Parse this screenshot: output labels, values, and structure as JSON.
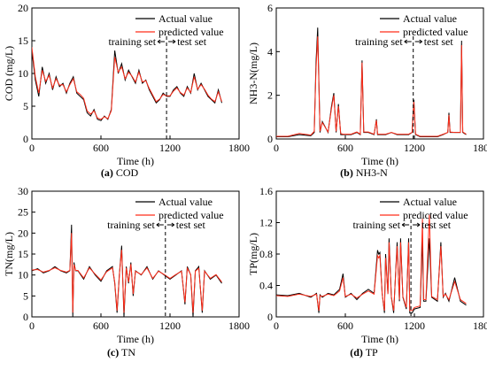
{
  "chart_data": [
    {
      "type": "line",
      "panel": "a",
      "caption_letter": "(a)",
      "caption_text": " COD",
      "xlabel": "Time (h)",
      "ylabel": "COD (mg/L)",
      "xlim": [
        0,
        1800
      ],
      "ylim": [
        0,
        20
      ],
      "xticks": [
        0,
        600,
        1200,
        1800
      ],
      "yticks": [
        0,
        5,
        10,
        15,
        20
      ],
      "legend_position": "top-right",
      "split_x": 1170,
      "annotation": {
        "left": "training set",
        "right": "test set"
      },
      "x": [
        0,
        30,
        60,
        90,
        120,
        150,
        180,
        210,
        240,
        270,
        300,
        330,
        360,
        390,
        420,
        450,
        480,
        510,
        540,
        570,
        600,
        630,
        660,
        690,
        720,
        750,
        780,
        810,
        840,
        870,
        900,
        930,
        960,
        990,
        1020,
        1050,
        1080,
        1110,
        1140,
        1170,
        1200,
        1230,
        1260,
        1290,
        1320,
        1350,
        1380,
        1410,
        1440,
        1470,
        1500,
        1530,
        1560,
        1590,
        1620,
        1650
      ],
      "series": [
        {
          "name": "Actual value",
          "color": "#000000",
          "values": [
            13.5,
            9,
            6.5,
            11,
            8.5,
            10,
            7.5,
            9.5,
            8,
            8.5,
            7,
            8.5,
            9.5,
            7,
            6.5,
            6,
            4,
            3.5,
            4.5,
            3,
            2.8,
            3.5,
            3,
            4.5,
            13.5,
            10,
            11.5,
            9,
            10.5,
            9.5,
            8.5,
            10.5,
            8.5,
            9,
            7.5,
            6.5,
            5.5,
            6,
            7,
            6.5,
            6.5,
            7.5,
            8,
            7,
            6.5,
            8,
            7,
            10,
            7.5,
            8.5,
            7.5,
            6.5,
            6,
            5.5,
            7.5,
            5.5
          ]
        },
        {
          "name": "predicted value",
          "color": "#ff2d1a",
          "values": [
            14,
            9.5,
            7,
            10.5,
            8.8,
            9.7,
            7.8,
            9.2,
            8.2,
            8.3,
            7.2,
            8.3,
            9.2,
            7.2,
            6.8,
            6.2,
            4.3,
            3.8,
            4.3,
            3.2,
            3,
            3.4,
            3.1,
            4.3,
            12.5,
            10.2,
            11,
            9.2,
            10.2,
            9.6,
            8.7,
            10.2,
            8.7,
            8.9,
            7.7,
            6.7,
            5.7,
            6.1,
            6.8,
            6.6,
            6.6,
            7.3,
            7.8,
            7.1,
            6.7,
            7.8,
            7.1,
            9.5,
            7.6,
            8.3,
            7.6,
            6.7,
            6.1,
            5.7,
            7.2,
            5.7
          ]
        }
      ]
    },
    {
      "type": "line",
      "panel": "b",
      "caption_letter": "(b)",
      "caption_text": " NH3-N",
      "xlabel": "Time (h)",
      "ylabel": "NH3-N(mg/L)",
      "xlim": [
        0,
        1800
      ],
      "ylim": [
        0,
        6
      ],
      "xticks": [
        0,
        600,
        1200,
        1800
      ],
      "yticks": [
        0,
        2,
        4,
        6
      ],
      "legend_position": "top-right",
      "split_x": 1190,
      "annotation": {
        "left": "training set",
        "right": "test set"
      },
      "x": [
        0,
        100,
        200,
        300,
        330,
        345,
        360,
        380,
        400,
        450,
        480,
        500,
        520,
        540,
        560,
        580,
        600,
        650,
        700,
        730,
        745,
        760,
        800,
        850,
        870,
        880,
        900,
        950,
        1000,
        1050,
        1100,
        1150,
        1180,
        1195,
        1210,
        1250,
        1300,
        1350,
        1400,
        1450,
        1490,
        1500,
        1510,
        1550,
        1580,
        1600,
        1610,
        1620,
        1650
      ],
      "series": [
        {
          "name": "Actual value",
          "color": "#000000",
          "values": [
            0.1,
            0.1,
            0.2,
            0.15,
            0.3,
            3.5,
            5.1,
            0.3,
            0.8,
            0.3,
            1.5,
            2.1,
            0.3,
            1.6,
            0.2,
            0.2,
            0.2,
            0.2,
            0.3,
            0.2,
            3.6,
            0.3,
            0.3,
            0.2,
            0.9,
            0.2,
            0.2,
            0.2,
            0.3,
            0.2,
            0.2,
            0.2,
            0.3,
            1.8,
            0.2,
            0.1,
            0.1,
            0.1,
            0.1,
            0.2,
            0.3,
            1.2,
            0.3,
            0.3,
            0.3,
            0.3,
            4.5,
            0.3,
            0.2
          ]
        },
        {
          "name": "predicted value",
          "color": "#ff2d1a",
          "values": [
            0.12,
            0.12,
            0.25,
            0.18,
            0.35,
            3.2,
            4.7,
            0.35,
            0.75,
            0.32,
            1.4,
            2,
            0.35,
            1.5,
            0.25,
            0.22,
            0.22,
            0.22,
            0.32,
            0.22,
            3.5,
            0.32,
            0.32,
            0.22,
            0.85,
            0.22,
            0.22,
            0.22,
            0.3,
            0.22,
            0.22,
            0.22,
            0.3,
            1.7,
            0.22,
            0.12,
            0.12,
            0.12,
            0.12,
            0.22,
            0.3,
            1.1,
            0.32,
            0.3,
            0.3,
            0.3,
            4.3,
            0.32,
            0.22
          ]
        }
      ]
    },
    {
      "type": "line",
      "panel": "c",
      "caption_letter": "(c)",
      "caption_text": " TN",
      "xlabel": "Time (h)",
      "ylabel": "TN(mg/L)",
      "xlim": [
        0,
        1800
      ],
      "ylim": [
        0,
        30
      ],
      "xticks": [
        0,
        600,
        1200,
        1800
      ],
      "yticks": [
        0,
        5,
        10,
        15,
        20,
        25,
        30
      ],
      "legend_position": "top-right",
      "split_x": 1160,
      "annotation": {
        "left": "training set",
        "right": "test set"
      },
      "x": [
        0,
        50,
        100,
        150,
        200,
        250,
        300,
        330,
        345,
        355,
        365,
        380,
        400,
        450,
        500,
        550,
        600,
        650,
        700,
        720,
        740,
        760,
        780,
        800,
        820,
        840,
        860,
        880,
        900,
        950,
        1000,
        1050,
        1100,
        1150,
        1200,
        1250,
        1300,
        1330,
        1350,
        1380,
        1400,
        1420,
        1450,
        1480,
        1500,
        1550,
        1600,
        1650
      ],
      "series": [
        {
          "name": "Actual value",
          "color": "#000000",
          "values": [
            11,
            11.5,
            10.5,
            11,
            12,
            11,
            10.5,
            11,
            22,
            0,
            13,
            11,
            11,
            9,
            12,
            10,
            8.5,
            11,
            12,
            8,
            1,
            10,
            17,
            0,
            12,
            8,
            13,
            5,
            11,
            10,
            12,
            9,
            11,
            10,
            9,
            10,
            11,
            3,
            12,
            10,
            0,
            11,
            12,
            1,
            11,
            9,
            10,
            8
          ]
        },
        {
          "name": "predicted value",
          "color": "#ff2d1a",
          "values": [
            11.2,
            11.3,
            10.7,
            11.1,
            11.7,
            11.1,
            10.7,
            11.1,
            20,
            1,
            12.5,
            11.1,
            11.1,
            9.3,
            11.7,
            10.2,
            8.8,
            10.8,
            11.7,
            8.3,
            1.5,
            10.1,
            16,
            1,
            11.7,
            8.3,
            12.6,
            5.5,
            10.9,
            10.1,
            11.7,
            9.2,
            10.9,
            10.1,
            9.2,
            10.1,
            10.9,
            3.5,
            11.6,
            10.1,
            1,
            10.9,
            11.6,
            1.5,
            10.9,
            9.2,
            10.1,
            8.3
          ]
        }
      ]
    },
    {
      "type": "line",
      "panel": "d",
      "caption_letter": "(d)",
      "caption_text": " TP",
      "xlabel": "Time (h)",
      "ylabel": "TP(mg/L)",
      "xlim": [
        0,
        1800
      ],
      "ylim": [
        0,
        1.6
      ],
      "xticks": [
        0,
        600,
        1200,
        1800
      ],
      "yticks": [
        0,
        0.4,
        0.8,
        1.2,
        1.6
      ],
      "legend_position": "top-right",
      "split_x": 1170,
      "annotation": {
        "left": "training set",
        "right": "test set"
      },
      "x": [
        0,
        100,
        200,
        300,
        350,
        370,
        380,
        400,
        450,
        500,
        550,
        580,
        600,
        650,
        700,
        750,
        800,
        850,
        880,
        890,
        900,
        920,
        940,
        950,
        970,
        980,
        1000,
        1020,
        1050,
        1070,
        1080,
        1100,
        1130,
        1150,
        1160,
        1180,
        1200,
        1250,
        1270,
        1280,
        1300,
        1330,
        1350,
        1400,
        1430,
        1450,
        1470,
        1500,
        1550,
        1600,
        1650
      ],
      "series": [
        {
          "name": "Actual value",
          "color": "#000000",
          "values": [
            0.28,
            0.27,
            0.3,
            0.25,
            0.3,
            0.05,
            0.28,
            0.25,
            0.3,
            0.28,
            0.35,
            0.55,
            0.25,
            0.3,
            0.22,
            0.3,
            0.35,
            0.3,
            0.85,
            0.8,
            0.82,
            0.3,
            0.05,
            0.8,
            0.3,
            1.0,
            0.25,
            0.05,
            0.95,
            0.2,
            1.0,
            0.25,
            0.1,
            1.0,
            0.05,
            0.05,
            0.1,
            0.12,
            1.0,
            0.2,
            0.2,
            1.0,
            0.25,
            0.2,
            0.95,
            0.25,
            0.3,
            0.2,
            0.5,
            0.2,
            0.15
          ]
        },
        {
          "name": "predicted value",
          "color": "#ff2d1a",
          "values": [
            0.27,
            0.26,
            0.29,
            0.26,
            0.29,
            0.08,
            0.27,
            0.26,
            0.29,
            0.27,
            0.33,
            0.5,
            0.26,
            0.29,
            0.24,
            0.29,
            0.33,
            0.29,
            0.78,
            0.75,
            0.78,
            0.29,
            0.08,
            0.75,
            0.29,
            0.95,
            0.26,
            0.08,
            0.9,
            0.22,
            0.95,
            0.26,
            0.12,
            0.95,
            0.08,
            0.08,
            0.12,
            0.14,
            1.25,
            0.22,
            0.22,
            1.3,
            0.26,
            0.22,
            0.9,
            0.26,
            0.29,
            0.22,
            0.45,
            0.22,
            0.17
          ]
        }
      ]
    }
  ]
}
